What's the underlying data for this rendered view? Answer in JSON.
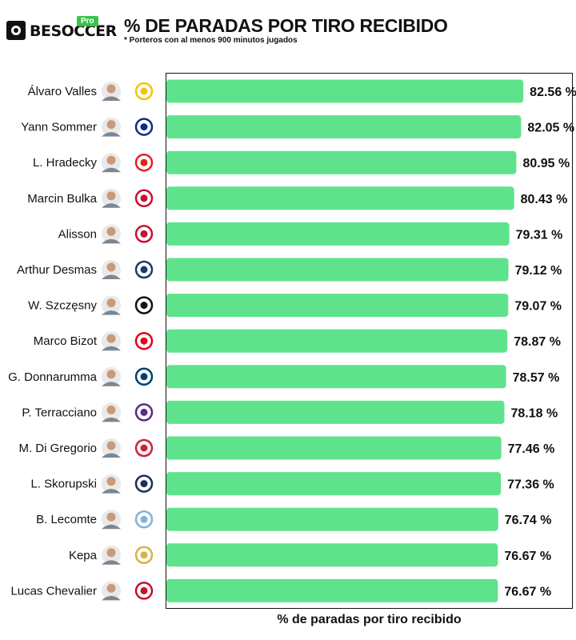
{
  "brand": {
    "name": "BESOCCER",
    "badge": "Pro"
  },
  "header": {
    "title": "% DE PARADAS POR TIRO RECIBIDO",
    "subtitle": "* Porteros con al menos 900 minutos jugados"
  },
  "chart_data": {
    "type": "bar",
    "orientation": "horizontal",
    "title": "% DE PARADAS POR TIRO RECIBIDO",
    "subtitle": "* Porteros con al menos 900 minutos jugados",
    "xlabel": "% de paradas por tiro recibido",
    "ylabel": "",
    "xlim": [
      0,
      94
    ],
    "grid": false,
    "legend": "none",
    "bar_color": "#5ee38c",
    "categories": [
      "Álvaro Valles",
      "Yann Sommer",
      "L. Hradecky",
      "Marcin Bulka",
      "Alisson",
      "Arthur Desmas",
      "W. Szczęsny",
      "Marco Bizot",
      "G. Donnarumma",
      "P. Terracciano",
      "M. Di Gregorio",
      "L. Skorupski",
      "B. Lecomte",
      "Kepa",
      "Lucas Chevalier"
    ],
    "values": [
      82.56,
      82.05,
      80.95,
      80.43,
      79.31,
      79.12,
      79.07,
      78.87,
      78.57,
      78.18,
      77.46,
      77.36,
      76.74,
      76.67,
      76.67
    ],
    "value_labels": [
      "82.56 %",
      "82.05 %",
      "80.95 %",
      "80.43 %",
      "79.31 %",
      "79.12 %",
      "79.07 %",
      "78.87 %",
      "78.57 %",
      "78.18 %",
      "77.46 %",
      "77.36 %",
      "76.74 %",
      "76.67 %",
      "76.67 %"
    ],
    "player_icons": [
      "goalkeeper-avatar-icon"
    ],
    "club_icons": [
      "las-palmas-crest-icon",
      "inter-crest-icon",
      "leverkusen-crest-icon",
      "nice-crest-icon",
      "liverpool-crest-icon",
      "le-havre-crest-icon",
      "juventus-crest-icon",
      "brest-crest-icon",
      "psg-crest-icon",
      "fiorentina-crest-icon",
      "monza-crest-icon",
      "bologna-crest-icon",
      "montpellier-crest-icon",
      "real-madrid-crest-icon",
      "lille-crest-icon"
    ],
    "club_colors": [
      "#f4c400",
      "#0d2f8c",
      "#e32219",
      "#c8102e",
      "#c8102e",
      "#1c3b6b",
      "#111111",
      "#e2001a",
      "#004170",
      "#5b2a8a",
      "#d21f3a",
      "#1a2f5a",
      "#7fb3d5",
      "#d9b240",
      "#c8102e"
    ]
  }
}
